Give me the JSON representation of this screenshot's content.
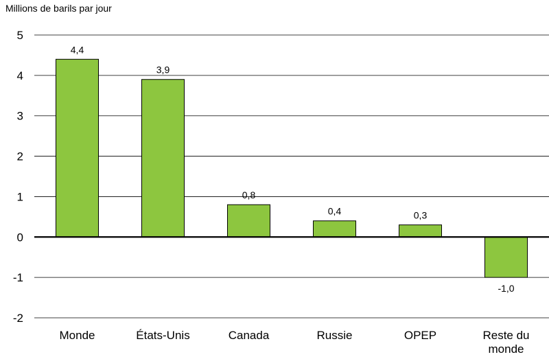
{
  "chart_data": {
    "type": "bar",
    "ylabel": "Millions de barils par jour",
    "ylim": [
      -2,
      5
    ],
    "yticks": [
      "5",
      "4",
      "3",
      "2",
      "1",
      "0",
      "-1",
      "-2"
    ],
    "ytick_values": [
      5,
      4,
      3,
      2,
      1,
      0,
      -1,
      -2
    ],
    "categories": [
      "Monde",
      "États-Unis",
      "Canada",
      "Russie",
      "OPEP",
      "Reste du monde"
    ],
    "category_lines": [
      [
        "Monde"
      ],
      [
        "États-Unis"
      ],
      [
        "Canada"
      ],
      [
        "Russie"
      ],
      [
        "OPEP"
      ],
      [
        "Reste du",
        "monde"
      ]
    ],
    "values": [
      4.4,
      3.9,
      0.8,
      0.4,
      0.3,
      -1.0
    ],
    "data_labels": [
      "4,4",
      "3,9",
      "0,8",
      "0,4",
      "0,3",
      "-1,0"
    ],
    "grid": "horizontal",
    "bar_color": "#8dc63f",
    "bar_outline": "#000000"
  }
}
